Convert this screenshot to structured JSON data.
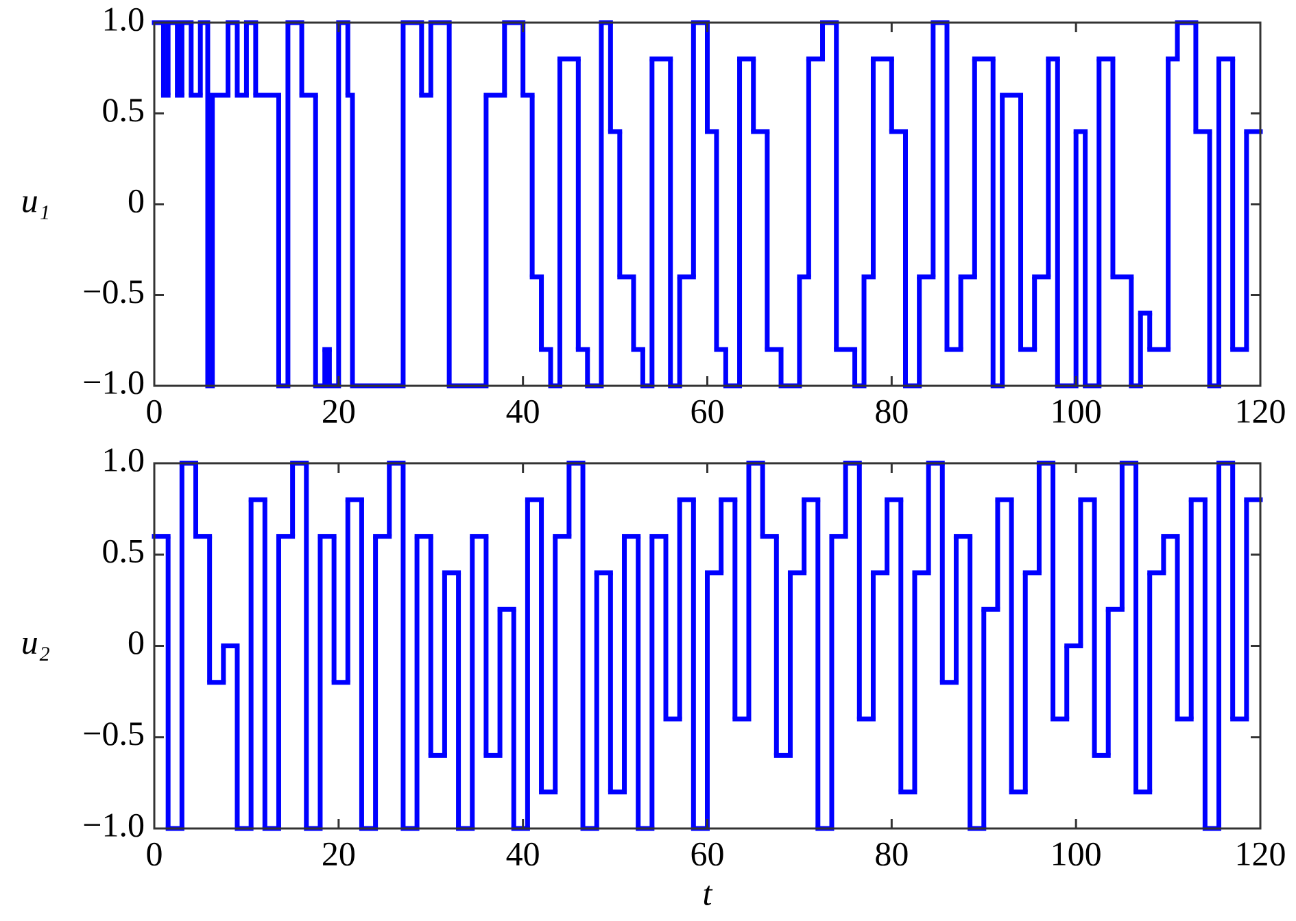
{
  "chart_data": [
    {
      "type": "step",
      "ylabel": "u₁",
      "color": "#0000ff",
      "xlim": [
        0,
        120
      ],
      "xticks": [
        0,
        20,
        40,
        60,
        80,
        100,
        120
      ],
      "ylim": [
        -1,
        1
      ],
      "yticks": [
        {
          "value": -1,
          "label": "−1.0"
        },
        {
          "value": -0.5,
          "label": "−0.5"
        },
        0,
        {
          "value": 0.5,
          "label": "0.5"
        },
        {
          "value": 1,
          "label": "1.0"
        }
      ],
      "x": [
        0,
        1,
        1.5,
        2.5,
        3,
        4,
        5,
        5.8,
        6.3,
        8,
        9,
        10,
        11,
        13.5,
        14.5,
        16,
        17.5,
        18.5,
        19,
        20,
        21,
        21.5,
        27,
        29,
        30,
        32,
        36,
        38,
        40,
        41,
        42,
        43,
        44,
        46,
        47,
        48.5,
        49.5,
        50.5,
        52,
        53,
        54,
        56,
        57,
        58.5,
        60,
        61,
        62,
        63.5,
        65,
        66.5,
        68,
        70,
        71,
        72.5,
        74,
        76,
        77,
        78,
        80,
        81.5,
        83,
        84.5,
        86,
        87.5,
        89,
        91,
        92,
        94,
        95.5,
        97,
        98,
        100,
        101,
        102.5,
        104,
        106,
        107,
        108,
        110,
        111,
        113,
        114.5,
        115.5,
        117,
        118.5
      ],
      "values": [
        1,
        0.6,
        1,
        0.6,
        1,
        0.6,
        1,
        -1,
        0.6,
        1,
        0.6,
        1,
        0.6,
        -1,
        1,
        0.6,
        -1,
        -0.8,
        -1,
        1,
        0.6,
        -1,
        1,
        0.6,
        1,
        -1,
        0.6,
        1,
        0.6,
        -0.4,
        -0.8,
        -1,
        0.8,
        -0.8,
        -1,
        1,
        0.4,
        -0.4,
        -0.8,
        -1,
        0.8,
        -1,
        -0.4,
        1,
        0.4,
        -0.8,
        -1,
        0.8,
        0.4,
        -0.8,
        -1,
        -0.4,
        0.8,
        1,
        -0.8,
        -1,
        -0.4,
        0.8,
        0.4,
        -1,
        -0.4,
        1,
        -0.8,
        -0.4,
        0.8,
        -1,
        0.6,
        -0.8,
        -0.4,
        0.8,
        -1,
        0.4,
        -1,
        0.8,
        -0.4,
        -1,
        -0.6,
        -0.8,
        0.8,
        1,
        0.4,
        -1,
        0.8,
        -0.8,
        0.4
      ]
    },
    {
      "type": "step",
      "ylabel": "u₂",
      "xlabel": "t",
      "color": "#0000ff",
      "xlim": [
        0,
        120
      ],
      "xticks": [
        0,
        20,
        40,
        60,
        80,
        100,
        120
      ],
      "ylim": [
        -1,
        1
      ],
      "yticks": [
        {
          "value": -1,
          "label": "−1.0"
        },
        {
          "value": -0.5,
          "label": "−0.5"
        },
        0,
        {
          "value": 0.5,
          "label": "0.5"
        },
        {
          "value": 1,
          "label": "1.0"
        }
      ],
      "x": [
        0,
        1.5,
        3,
        4.5,
        6,
        7.5,
        9,
        10.5,
        12,
        13.5,
        15,
        16.5,
        18,
        19.5,
        21,
        22.5,
        24,
        25.5,
        27,
        28.5,
        30,
        31.5,
        33,
        34.5,
        36,
        37.5,
        39,
        40.5,
        42,
        43.5,
        45,
        46.5,
        48,
        49.5,
        51,
        52.5,
        54,
        55.5,
        57,
        58.5,
        60,
        61.5,
        63,
        64.5,
        66,
        67.5,
        69,
        70.5,
        72,
        73.5,
        75,
        76.5,
        78,
        79.5,
        81,
        82.5,
        84,
        85.5,
        87,
        88.5,
        90,
        91.5,
        93,
        94.5,
        96,
        97.5,
        99,
        100.5,
        102,
        103.5,
        105,
        106.5,
        108,
        109.5,
        111,
        112.5,
        114,
        115.5,
        117,
        118.5
      ],
      "values": [
        0.6,
        -1,
        1,
        0.6,
        -0.2,
        0,
        -1,
        0.8,
        -1,
        0.6,
        1,
        -1,
        0.6,
        -0.2,
        0.8,
        -1,
        0.6,
        1,
        -1,
        0.6,
        -0.6,
        0.4,
        -1,
        0.6,
        -0.6,
        0.2,
        -1,
        0.8,
        -0.8,
        0.6,
        1,
        -1,
        0.4,
        -0.8,
        0.6,
        -1,
        0.6,
        -0.4,
        0.8,
        -1,
        0.4,
        0.8,
        -0.4,
        1,
        0.6,
        -0.6,
        0.4,
        0.8,
        -1,
        0.6,
        1,
        -0.4,
        0.4,
        0.8,
        -0.8,
        0.4,
        1,
        -0.2,
        0.6,
        -1,
        0.2,
        0.8,
        -0.8,
        0.4,
        1,
        -0.4,
        0,
        0.8,
        -0.6,
        0.2,
        1,
        -0.8,
        0.4,
        0.6,
        -0.4,
        0.8,
        -1,
        1,
        -0.4,
        0.8
      ]
    }
  ]
}
